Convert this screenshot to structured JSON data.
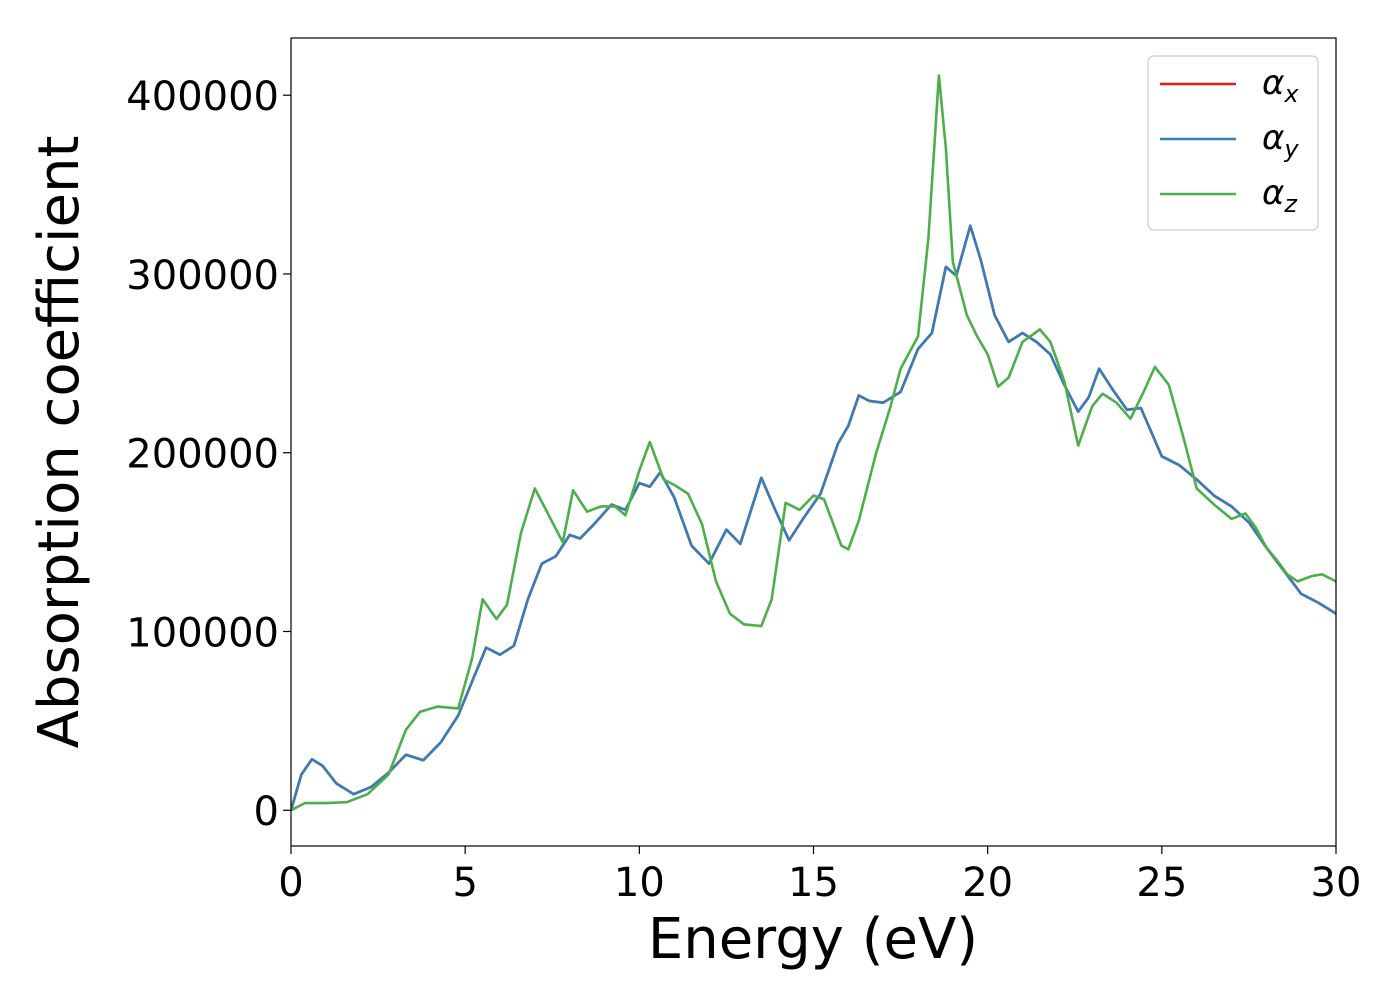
{
  "chart_data": {
    "type": "line",
    "title": "",
    "xlabel": "Energy (eV)",
    "ylabel": "Absorption coefficient",
    "xlim": [
      0,
      30
    ],
    "ylim": [
      -20000,
      432000
    ],
    "xticks": [
      0,
      5,
      10,
      15,
      20,
      25,
      30
    ],
    "yticks": [
      0,
      100000,
      200000,
      300000,
      400000
    ],
    "grid": false,
    "legend_position": "top-right",
    "series": [
      {
        "name": "α_x",
        "legend_base": "α",
        "legend_sub": "x",
        "color": "#e41a1c",
        "points": [
          [
            0,
            0
          ],
          [
            0.3,
            20000
          ],
          [
            0.6,
            28500
          ],
          [
            0.9,
            25000
          ],
          [
            1.3,
            15000
          ],
          [
            1.8,
            9000
          ],
          [
            2.3,
            13000
          ],
          [
            2.8,
            21000
          ],
          [
            3.3,
            31000
          ],
          [
            3.8,
            28000
          ],
          [
            4.3,
            38000
          ],
          [
            4.8,
            53000
          ],
          [
            5.2,
            72000
          ],
          [
            5.6,
            91000
          ],
          [
            6.0,
            87000
          ],
          [
            6.4,
            92000
          ],
          [
            6.8,
            118000
          ],
          [
            7.2,
            138000
          ],
          [
            7.6,
            142000
          ],
          [
            8.0,
            154000
          ],
          [
            8.3,
            152000
          ],
          [
            8.7,
            160000
          ],
          [
            9.2,
            171000
          ],
          [
            9.6,
            168000
          ],
          [
            10.0,
            183000
          ],
          [
            10.3,
            181000
          ],
          [
            10.6,
            189000
          ],
          [
            11.0,
            175000
          ],
          [
            11.5,
            148000
          ],
          [
            12.0,
            138000
          ],
          [
            12.5,
            157000
          ],
          [
            12.9,
            149000
          ],
          [
            13.5,
            186000
          ],
          [
            13.9,
            168000
          ],
          [
            14.3,
            151000
          ],
          [
            14.7,
            163000
          ],
          [
            15.2,
            177000
          ],
          [
            15.7,
            205000
          ],
          [
            16.0,
            215000
          ],
          [
            16.3,
            232000
          ],
          [
            16.6,
            229000
          ],
          [
            17.0,
            228000
          ],
          [
            17.5,
            234000
          ],
          [
            18.0,
            258000
          ],
          [
            18.4,
            267000
          ],
          [
            18.8,
            304000
          ],
          [
            19.1,
            299000
          ],
          [
            19.5,
            327000
          ],
          [
            19.8,
            308000
          ],
          [
            20.2,
            277000
          ],
          [
            20.6,
            262000
          ],
          [
            21.0,
            267000
          ],
          [
            21.4,
            262000
          ],
          [
            21.8,
            255000
          ],
          [
            22.2,
            238000
          ],
          [
            22.6,
            223000
          ],
          [
            22.9,
            231000
          ],
          [
            23.2,
            247000
          ],
          [
            23.6,
            235000
          ],
          [
            24.0,
            224000
          ],
          [
            24.4,
            225000
          ],
          [
            25.0,
            198000
          ],
          [
            25.5,
            193000
          ],
          [
            26.0,
            185000
          ],
          [
            26.5,
            176000
          ],
          [
            27.0,
            170000
          ],
          [
            27.5,
            161000
          ],
          [
            28.0,
            147000
          ],
          [
            28.5,
            134000
          ],
          [
            29.0,
            121000
          ],
          [
            29.5,
            116000
          ],
          [
            30.0,
            110000
          ]
        ]
      },
      {
        "name": "α_y",
        "legend_base": "α",
        "legend_sub": "y",
        "color": "#377eb8",
        "points": [
          [
            0,
            0
          ],
          [
            0.3,
            20000
          ],
          [
            0.6,
            28500
          ],
          [
            0.9,
            25000
          ],
          [
            1.3,
            15000
          ],
          [
            1.8,
            9000
          ],
          [
            2.3,
            13000
          ],
          [
            2.8,
            21000
          ],
          [
            3.3,
            31000
          ],
          [
            3.8,
            28000
          ],
          [
            4.3,
            38000
          ],
          [
            4.8,
            53000
          ],
          [
            5.2,
            72000
          ],
          [
            5.6,
            91000
          ],
          [
            6.0,
            87000
          ],
          [
            6.4,
            92000
          ],
          [
            6.8,
            118000
          ],
          [
            7.2,
            138000
          ],
          [
            7.6,
            142000
          ],
          [
            8.0,
            154000
          ],
          [
            8.3,
            152000
          ],
          [
            8.7,
            160000
          ],
          [
            9.2,
            171000
          ],
          [
            9.6,
            168000
          ],
          [
            10.0,
            183000
          ],
          [
            10.3,
            181000
          ],
          [
            10.6,
            189000
          ],
          [
            11.0,
            175000
          ],
          [
            11.5,
            148000
          ],
          [
            12.0,
            138000
          ],
          [
            12.5,
            157000
          ],
          [
            12.9,
            149000
          ],
          [
            13.5,
            186000
          ],
          [
            13.9,
            168000
          ],
          [
            14.3,
            151000
          ],
          [
            14.7,
            163000
          ],
          [
            15.2,
            177000
          ],
          [
            15.7,
            205000
          ],
          [
            16.0,
            215000
          ],
          [
            16.3,
            232000
          ],
          [
            16.6,
            229000
          ],
          [
            17.0,
            228000
          ],
          [
            17.5,
            234000
          ],
          [
            18.0,
            258000
          ],
          [
            18.4,
            267000
          ],
          [
            18.8,
            304000
          ],
          [
            19.1,
            299000
          ],
          [
            19.5,
            327000
          ],
          [
            19.8,
            308000
          ],
          [
            20.2,
            277000
          ],
          [
            20.6,
            262000
          ],
          [
            21.0,
            267000
          ],
          [
            21.4,
            262000
          ],
          [
            21.8,
            255000
          ],
          [
            22.2,
            238000
          ],
          [
            22.6,
            223000
          ],
          [
            22.9,
            231000
          ],
          [
            23.2,
            247000
          ],
          [
            23.6,
            235000
          ],
          [
            24.0,
            224000
          ],
          [
            24.4,
            225000
          ],
          [
            25.0,
            198000
          ],
          [
            25.5,
            193000
          ],
          [
            26.0,
            185000
          ],
          [
            26.5,
            176000
          ],
          [
            27.0,
            170000
          ],
          [
            27.5,
            161000
          ],
          [
            28.0,
            147000
          ],
          [
            28.5,
            134000
          ],
          [
            29.0,
            121000
          ],
          [
            29.5,
            116000
          ],
          [
            30.0,
            110000
          ]
        ]
      },
      {
        "name": "α_z",
        "legend_base": "α",
        "legend_sub": "z",
        "color": "#4daf4a",
        "points": [
          [
            0,
            0
          ],
          [
            0.4,
            4000
          ],
          [
            1.0,
            4000
          ],
          [
            1.6,
            4500
          ],
          [
            2.2,
            9000
          ],
          [
            2.8,
            20000
          ],
          [
            3.3,
            45000
          ],
          [
            3.7,
            55000
          ],
          [
            4.2,
            58000
          ],
          [
            4.8,
            57000
          ],
          [
            5.2,
            85000
          ],
          [
            5.5,
            118000
          ],
          [
            5.9,
            107000
          ],
          [
            6.2,
            115000
          ],
          [
            6.6,
            155000
          ],
          [
            7.0,
            180000
          ],
          [
            7.4,
            165000
          ],
          [
            7.8,
            150000
          ],
          [
            8.1,
            179000
          ],
          [
            8.5,
            167000
          ],
          [
            8.9,
            170000
          ],
          [
            9.3,
            170000
          ],
          [
            9.6,
            165000
          ],
          [
            10.0,
            190000
          ],
          [
            10.3,
            206000
          ],
          [
            10.7,
            185000
          ],
          [
            11.0,
            182000
          ],
          [
            11.4,
            177000
          ],
          [
            11.8,
            160000
          ],
          [
            12.2,
            128000
          ],
          [
            12.6,
            110000
          ],
          [
            13.0,
            104000
          ],
          [
            13.5,
            103000
          ],
          [
            13.8,
            118000
          ],
          [
            14.2,
            172000
          ],
          [
            14.6,
            168000
          ],
          [
            15.0,
            176000
          ],
          [
            15.3,
            174000
          ],
          [
            15.8,
            148000
          ],
          [
            16.0,
            146000
          ],
          [
            16.3,
            162000
          ],
          [
            16.8,
            200000
          ],
          [
            17.2,
            225000
          ],
          [
            17.5,
            247000
          ],
          [
            18.0,
            265000
          ],
          [
            18.3,
            320000
          ],
          [
            18.6,
            411000
          ],
          [
            18.8,
            370000
          ],
          [
            19.0,
            307000
          ],
          [
            19.4,
            277000
          ],
          [
            19.7,
            265000
          ],
          [
            20.0,
            255000
          ],
          [
            20.3,
            237000
          ],
          [
            20.6,
            242000
          ],
          [
            21.0,
            262000
          ],
          [
            21.5,
            269000
          ],
          [
            21.8,
            262000
          ],
          [
            22.2,
            240000
          ],
          [
            22.6,
            204000
          ],
          [
            23.0,
            226000
          ],
          [
            23.3,
            233000
          ],
          [
            23.7,
            228000
          ],
          [
            24.1,
            219000
          ],
          [
            24.5,
            235000
          ],
          [
            24.8,
            248000
          ],
          [
            25.2,
            238000
          ],
          [
            25.6,
            210000
          ],
          [
            26.0,
            180000
          ],
          [
            26.5,
            171000
          ],
          [
            27.0,
            163000
          ],
          [
            27.4,
            166000
          ],
          [
            27.7,
            158000
          ],
          [
            28.0,
            147000
          ],
          [
            28.3,
            140000
          ],
          [
            28.6,
            132000
          ],
          [
            28.9,
            128000
          ],
          [
            29.3,
            131000
          ],
          [
            29.6,
            132000
          ],
          [
            30.0,
            128000
          ]
        ]
      }
    ]
  }
}
